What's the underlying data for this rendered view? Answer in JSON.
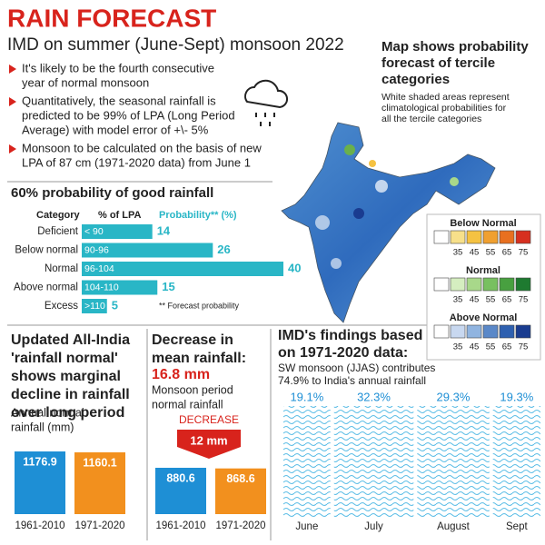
{
  "title": "RAIN FORECAST",
  "subtitle": "IMD on summer (June-Sept) monsoon 2022",
  "bullets": [
    [
      "It's likely to be the fourth consecutive",
      "year of normal monsoon"
    ],
    [
      "Quantitatively, the seasonal rainfall is",
      "predicted to be 99% of LPA (Long Period",
      "Average) with model error of +\\- 5%"
    ],
    [
      "Monsoon to be calculated on the basis of new",
      "LPA of 87 cm (1971-2020 data) from June 1"
    ]
  ],
  "map": {
    "title": [
      "Map shows probability",
      "forecast of tercile",
      "categories"
    ],
    "note": [
      "White shaded areas represent",
      "climatological probabilities for",
      "all the tercile categories"
    ],
    "legend": [
      {
        "title": "Below Normal",
        "ticks": [
          35,
          45,
          55,
          65,
          75
        ],
        "colors": [
          "#ffffff",
          "#f7e08a",
          "#f5c242",
          "#f0a030",
          "#e87020",
          "#d73020"
        ]
      },
      {
        "title": "Normal",
        "ticks": [
          35,
          45,
          55,
          65,
          75
        ],
        "colors": [
          "#ffffff",
          "#d5eec0",
          "#a8d88a",
          "#78c060",
          "#48a040",
          "#1e7a30"
        ]
      },
      {
        "title": "Above Normal",
        "ticks": [
          35,
          45,
          55,
          65,
          75
        ],
        "colors": [
          "#ffffff",
          "#c8d8f0",
          "#90b4e0",
          "#5a88c8",
          "#2e60b0",
          "#1a3c90"
        ]
      }
    ]
  },
  "chart_data": [
    {
      "type": "hbar",
      "title": "60% probability of good rainfall",
      "headers": [
        "Category",
        "% of LPA",
        "Probability** (%)"
      ],
      "categories": [
        "Deficient",
        "Below normal",
        "Normal",
        "Above normal",
        "Excess"
      ],
      "ranges": [
        "< 90",
        "90-96",
        "96-104",
        "104-110",
        ">110"
      ],
      "values": [
        14,
        26,
        40,
        15,
        5
      ],
      "color": "#29b6c6",
      "note": "** Forecast probability"
    },
    {
      "type": "bar",
      "title": [
        "Updated All-India",
        "'rainfall normal'",
        "shows marginal",
        "decline in rainfall",
        "over long period"
      ],
      "subtitle": [
        "Annual normal",
        "rainfall (mm)"
      ],
      "categories": [
        "1961-2010",
        "1971-2020"
      ],
      "values": [
        1176.9,
        1160.1
      ],
      "colors": [
        "#1e8fd5",
        "#f2901e"
      ]
    },
    {
      "type": "bar",
      "title": [
        "Decrease in",
        "mean rainfall:"
      ],
      "highlight": "16.8 mm",
      "subtitle": [
        "Monsoon period",
        "normal rainfall"
      ],
      "badge": "DECREASE",
      "difference": "12 mm",
      "categories": [
        "1961-2010",
        "1971-2020"
      ],
      "values": [
        880.6,
        868.6
      ],
      "colors": [
        "#1e8fd5",
        "#f2901e"
      ]
    },
    {
      "type": "wave",
      "title": [
        "IMD's findings based",
        "on 1971-2020 data:"
      ],
      "subtitle": [
        "SW monsoon (JJAS) contributes",
        "74.9% to India's annual rainfall"
      ],
      "categories": [
        "June",
        "July",
        "August",
        "Sept"
      ],
      "values": [
        19.1,
        32.3,
        29.3,
        19.3
      ],
      "value_labels": [
        "19.1%",
        "32.3%",
        "29.3%",
        "19.3%"
      ],
      "color": "#7fcbea"
    }
  ]
}
